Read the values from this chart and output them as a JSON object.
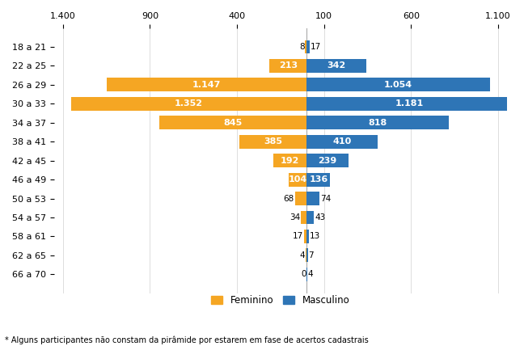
{
  "age_groups": [
    "18 a 21",
    "22 a 25",
    "26 a 29",
    "30 a 33",
    "34 a 37",
    "38 a 41",
    "42 a 45",
    "46 a 49",
    "50 a 53",
    "54 a 57",
    "58 a 61",
    "62 a 65",
    "66 a 70"
  ],
  "feminino": [
    8,
    213,
    1147,
    1352,
    845,
    385,
    192,
    104,
    68,
    34,
    17,
    4,
    0
  ],
  "masculino": [
    17,
    342,
    1054,
    1181,
    818,
    410,
    239,
    136,
    74,
    43,
    13,
    7,
    4
  ],
  "feminino_color": "#F5A623",
  "masculino_color": "#2E75B6",
  "background_color": "#FFFFFF",
  "grid_color": "#D0D0D0",
  "footnote": "* Alguns participantes não constam da pirâmide por estarem em fase de acertos cadastrais",
  "legend_feminino": "Feminino",
  "legend_masculino": "Masculino",
  "tick_positions": [
    -1400,
    -900,
    -400,
    100,
    600,
    1100
  ],
  "tick_labels": [
    "1.400",
    "900",
    "400",
    "100",
    "600",
    "1.100"
  ]
}
